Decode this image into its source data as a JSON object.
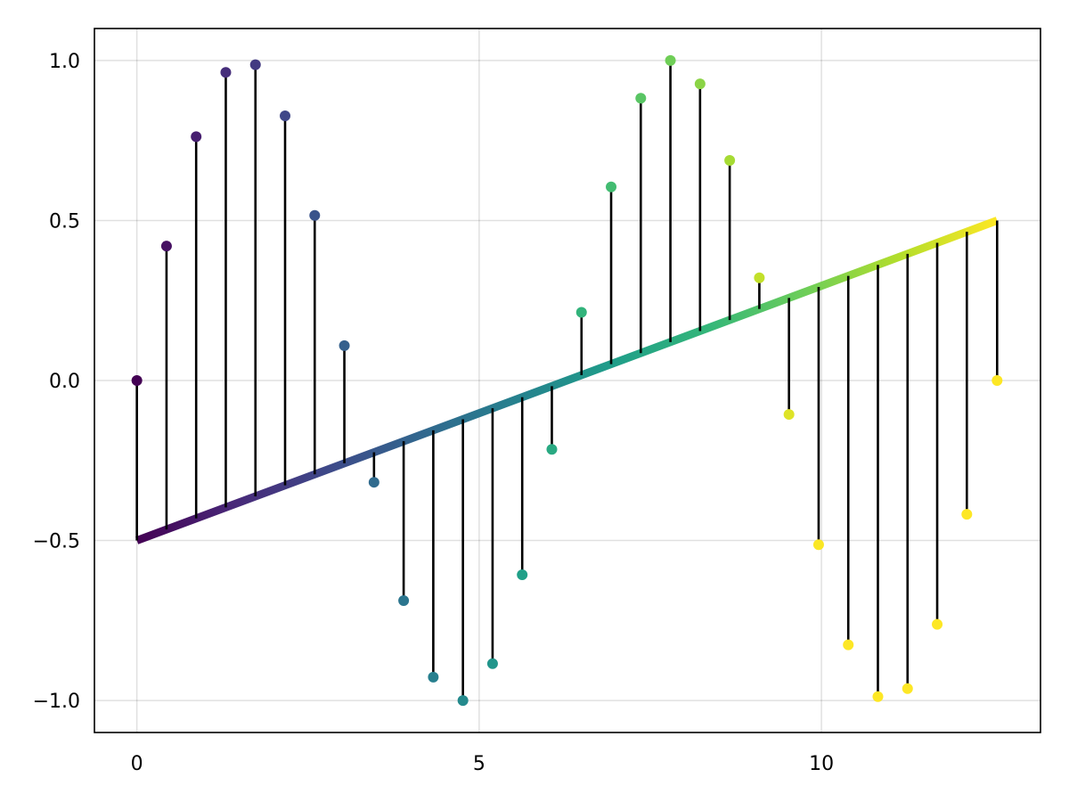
{
  "chart_data": {
    "type": "stem",
    "x": [
      0,
      0.433,
      0.866,
      1.299,
      1.732,
      2.165,
      2.598,
      3.031,
      3.464,
      3.897,
      4.33,
      4.763,
      5.196,
      5.629,
      6.062,
      6.495,
      6.928,
      7.361,
      7.794,
      8.227,
      8.66,
      9.093,
      9.526,
      9.959,
      10.392,
      10.825,
      11.258,
      11.691,
      12.124,
      12.5664
    ],
    "y": [
      0,
      0.42,
      0.762,
      0.963,
      0.987,
      0.827,
      0.516,
      0.109,
      -0.318,
      -0.688,
      -0.927,
      -1.0,
      -0.885,
      -0.607,
      -0.215,
      0.213,
      0.605,
      0.882,
      1.0,
      0.927,
      0.688,
      0.321,
      -0.106,
      -0.513,
      -0.826,
      -0.988,
      -0.963,
      -0.762,
      -0.418,
      0.0
    ],
    "offset_line": {
      "from": [
        0,
        -0.5
      ],
      "to": [
        12.5664,
        0.5
      ]
    },
    "xlim": [
      -0.62,
      13.2
    ],
    "ylim": [
      -1.1,
      1.1
    ],
    "x_ticks": [
      {
        "value": 0,
        "label": "0"
      },
      {
        "value": 5,
        "label": "5"
      },
      {
        "value": 10,
        "label": "10"
      }
    ],
    "y_ticks": [
      {
        "value": -1.0,
        "label": "−1.0"
      },
      {
        "value": -0.5,
        "label": "−0.5"
      },
      {
        "value": 0.0,
        "label": "0.0"
      },
      {
        "value": 0.5,
        "label": "0.5"
      },
      {
        "value": 1.0,
        "label": "1.0"
      }
    ],
    "grid": true,
    "colormap": "viridis",
    "color_range": [
      0,
      10
    ],
    "colors": {
      "stem": "#000000",
      "frame": "#000000",
      "viridis_stops": [
        "#440154",
        "#482878",
        "#3e4989",
        "#31688e",
        "#26828e",
        "#1f9e89",
        "#35b779",
        "#6ece58",
        "#b5de2b",
        "#fde725"
      ]
    }
  }
}
